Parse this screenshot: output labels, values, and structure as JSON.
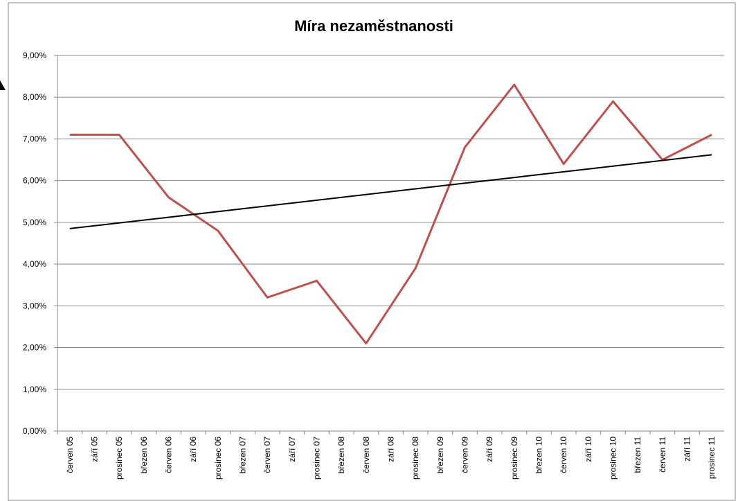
{
  "chart_data": {
    "type": "line",
    "title": "Míra nezaměstnanosti",
    "categories": [
      "červen 05",
      "září 05",
      "prosinec 05",
      "březen 06",
      "červen 06",
      "září 06",
      "prosinec 06",
      "březen 07",
      "červen 07",
      "září 07",
      "prosinec 07",
      "březen 08",
      "červen 08",
      "září 08",
      "prosinec 08",
      "březen 09",
      "červen 09",
      "září 09",
      "prosinec 09",
      "březen 10",
      "červen 10",
      "září 10",
      "prosinec 10",
      "březen 11",
      "červen 11",
      "září 11",
      "prosinec 11"
    ],
    "series": [
      {
        "color": "#c0504d",
        "values": [
          7.1,
          7.1,
          7.1,
          6.35,
          5.6,
          5.2,
          4.8,
          4.0,
          3.2,
          3.4,
          3.6,
          2.85,
          2.1,
          3.0,
          3.9,
          5.35,
          6.8,
          7.55,
          8.3,
          7.35,
          6.4,
          7.15,
          7.9,
          7.2,
          6.5,
          6.8,
          7.1
        ]
      }
    ],
    "trendline": {
      "color": "#000000",
      "values": [
        4.85,
        6.62
      ]
    },
    "ylim": [
      0,
      9
    ],
    "yticks": [
      {
        "value": 0,
        "label": "0,00%"
      },
      {
        "value": 1,
        "label": "1,00%"
      },
      {
        "value": 2,
        "label": "2,00%"
      },
      {
        "value": 3,
        "label": "3,00%"
      },
      {
        "value": 4,
        "label": "4,00%"
      },
      {
        "value": 5,
        "label": "5,00%"
      },
      {
        "value": 6,
        "label": "6,00%"
      },
      {
        "value": 7,
        "label": "7,00%"
      },
      {
        "value": 8,
        "label": "8,00%"
      },
      {
        "value": 9,
        "label": "9,00%"
      }
    ],
    "grid": true
  }
}
